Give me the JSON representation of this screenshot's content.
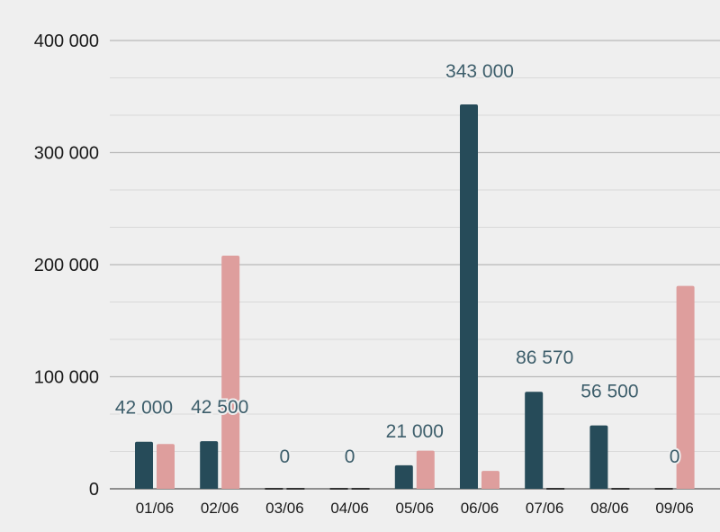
{
  "chart_data": {
    "type": "bar",
    "categories": [
      "01/06",
      "02/06",
      "03/06",
      "04/06",
      "05/06",
      "06/06",
      "07/06",
      "08/06",
      "09/06"
    ],
    "series": [
      {
        "values": [
          42000,
          42500,
          0,
          0,
          21000,
          343000,
          86570,
          56500,
          0
        ],
        "color": "#264b59"
      },
      {
        "values": [
          40000,
          208000,
          0,
          0,
          34000,
          16000,
          0,
          0,
          181000
        ],
        "color": "#de9e9d"
      }
    ],
    "data_labels": [
      "42 000",
      "42 500",
      "0",
      "0",
      "21 000",
      "343 000",
      "86 570",
      "56 500",
      "0"
    ],
    "y_ticks": [
      {
        "value": 0,
        "label": "0"
      },
      {
        "value": 100000,
        "label": "100 000"
      },
      {
        "value": 200000,
        "label": "200 000"
      },
      {
        "value": 300000,
        "label": "300 000"
      },
      {
        "value": 400000,
        "label": "400 000"
      }
    ],
    "ylim": [
      0,
      400000
    ],
    "minor_grid_step": 33333.33,
    "grid": true,
    "legend": "none",
    "label_color": "#3d5e6b",
    "grid_color": "#b9b9b9",
    "minor_grid_color": "#d9d9d9"
  }
}
